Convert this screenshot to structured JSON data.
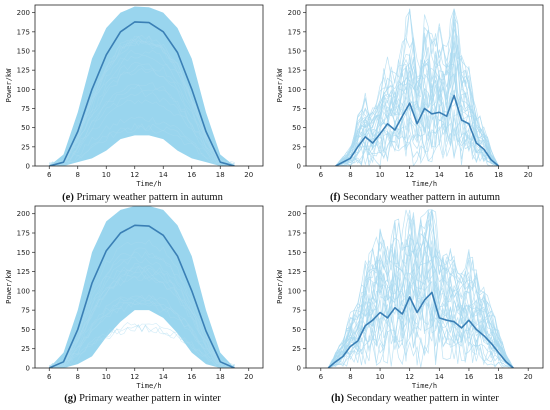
{
  "charts": [
    {
      "tag": "(e)",
      "caption": "Primary weather pattern in autumn"
    },
    {
      "tag": "(f)",
      "caption": "Secondary weather pattern in autumn"
    },
    {
      "tag": "(g)",
      "caption": "Primary weather pattern in winter"
    },
    {
      "tag": "(h)",
      "caption": "Secondary weather pattern in winter"
    }
  ],
  "colors": {
    "band": "#87ceeb",
    "thin": "#a9daf0",
    "mean": "#3a7fb5",
    "frame": "#222222"
  },
  "chart_data": [
    {
      "type": "line",
      "title": "",
      "xlabel": "Time/h",
      "ylabel": "Power/kW",
      "xlim": [
        5,
        21
      ],
      "ylim": [
        0,
        210
      ],
      "xticks": [
        6,
        8,
        10,
        12,
        14,
        16,
        18,
        20
      ],
      "yticks": [
        0,
        25,
        50,
        75,
        100,
        125,
        150,
        175,
        200
      ],
      "grid": false,
      "envelope": {
        "x": [
          6,
          7,
          8,
          9,
          10,
          11,
          12,
          13,
          14,
          15,
          16,
          17,
          18,
          19
        ],
        "upper": [
          0,
          15,
          70,
          140,
          180,
          200,
          208,
          207,
          200,
          180,
          140,
          70,
          15,
          0
        ],
        "lower": [
          0,
          0,
          5,
          10,
          20,
          35,
          40,
          40,
          35,
          20,
          10,
          5,
          0,
          0
        ]
      },
      "series": [
        {
          "x": [
            6,
            7,
            8,
            9,
            10,
            11,
            12,
            13,
            14,
            15,
            16,
            17,
            18,
            19
          ],
          "values": [
            0,
            5,
            45,
            100,
            145,
            175,
            188,
            187,
            175,
            148,
            100,
            45,
            5,
            0
          ]
        }
      ]
    },
    {
      "type": "line",
      "title": "",
      "xlabel": "Time/h",
      "ylabel": "Power/kW",
      "xlim": [
        5,
        21
      ],
      "ylim": [
        0,
        210
      ],
      "xticks": [
        6,
        8,
        10,
        12,
        14,
        16,
        18,
        20
      ],
      "yticks": [
        0,
        25,
        50,
        75,
        100,
        125,
        150,
        175,
        200
      ],
      "grid": false,
      "series": [
        {
          "x": [
            7,
            8,
            8.5,
            9,
            9.5,
            10,
            10.5,
            11,
            11.5,
            12,
            12.5,
            13,
            13.5,
            14,
            14.5,
            15,
            15.5,
            16,
            16.5,
            17,
            17.5,
            18
          ],
          "values": [
            0,
            10,
            25,
            38,
            30,
            42,
            55,
            47,
            65,
            82,
            55,
            75,
            68,
            70,
            65,
            92,
            60,
            55,
            30,
            22,
            8,
            0
          ]
        }
      ]
    },
    {
      "type": "line",
      "title": "",
      "xlabel": "Time/h",
      "ylabel": "Power/kW",
      "xlim": [
        5,
        21
      ],
      "ylim": [
        0,
        210
      ],
      "xticks": [
        6,
        8,
        10,
        12,
        14,
        16,
        18,
        20
      ],
      "yticks": [
        0,
        25,
        50,
        75,
        100,
        125,
        150,
        175,
        200
      ],
      "grid": false,
      "envelope": {
        "x": [
          6,
          7,
          8,
          9,
          10,
          11,
          12,
          13,
          14,
          15,
          16,
          17,
          18,
          19
        ],
        "upper": [
          0,
          20,
          75,
          150,
          190,
          205,
          210,
          210,
          205,
          185,
          145,
          75,
          20,
          0
        ],
        "lower": [
          0,
          0,
          5,
          15,
          40,
          60,
          75,
          75,
          65,
          45,
          20,
          5,
          0,
          0
        ]
      },
      "series": [
        {
          "x": [
            6,
            7,
            8,
            9,
            10,
            11,
            12,
            13,
            14,
            15,
            16,
            17,
            18,
            19
          ],
          "values": [
            0,
            8,
            50,
            110,
            152,
            175,
            185,
            184,
            172,
            145,
            100,
            48,
            8,
            0
          ]
        }
      ]
    },
    {
      "type": "line",
      "title": "",
      "xlabel": "Time/h",
      "ylabel": "Power/kW",
      "xlim": [
        5,
        21
      ],
      "ylim": [
        0,
        210
      ],
      "xticks": [
        6,
        8,
        10,
        12,
        14,
        16,
        18,
        20
      ],
      "yticks": [
        0,
        25,
        50,
        75,
        100,
        125,
        150,
        175,
        200
      ],
      "grid": false,
      "series": [
        {
          "x": [
            6.5,
            7,
            7.5,
            8,
            8.5,
            9,
            9.5,
            10,
            10.5,
            11,
            11.5,
            12,
            12.5,
            13,
            13.5,
            14,
            14.5,
            15,
            15.5,
            16,
            16.5,
            17,
            17.5,
            18,
            18.5,
            19
          ],
          "values": [
            0,
            8,
            15,
            28,
            35,
            55,
            62,
            72,
            65,
            78,
            70,
            92,
            72,
            88,
            98,
            65,
            62,
            60,
            52,
            62,
            50,
            42,
            32,
            20,
            8,
            0
          ]
        }
      ]
    }
  ]
}
